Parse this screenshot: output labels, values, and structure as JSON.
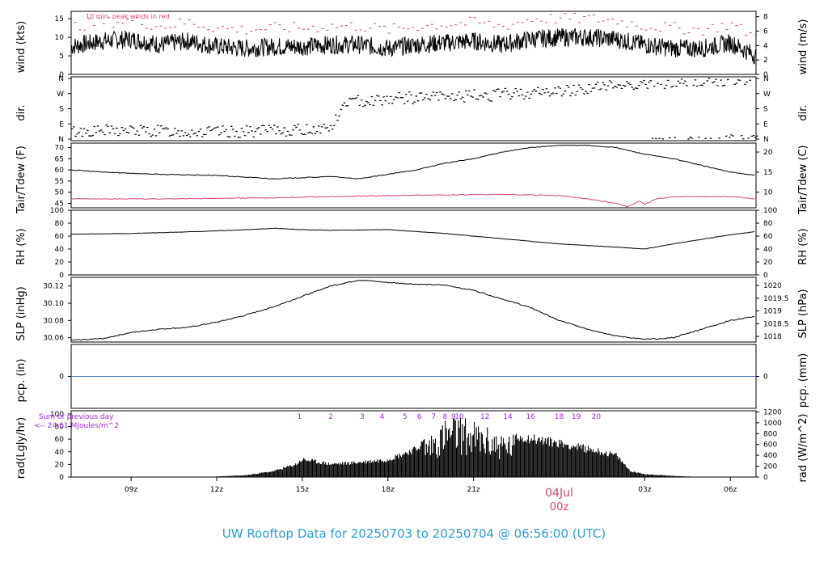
{
  "chart_data": {
    "type": "line",
    "title": "UW Rooftop Data for 20250703  to  20250704 @ 06:56:00  (UTC)",
    "x_axis": {
      "ticks": [
        "09z",
        "12z",
        "15z",
        "18z",
        "21z",
        "03z",
        "06z"
      ],
      "tick_hours": [
        9,
        12,
        15,
        18,
        21,
        27,
        30
      ],
      "range_hours": [
        6.9,
        30.9
      ],
      "date_marker": {
        "label": "04Jul",
        "sublabel": "00z",
        "hour": 24
      }
    },
    "panels": [
      {
        "id": "wind",
        "ylabel_left": "wind (kts)",
        "ylabel_right": "wind (m/s)",
        "ylim": [
          0,
          17
        ],
        "ticks_left": [
          0,
          5,
          10,
          15
        ],
        "ticks_right": [
          0,
          2,
          4,
          6,
          8
        ],
        "annotation": "10 min. peak winds in red",
        "series": [
          {
            "role": "mean",
            "color": "#000000",
            "x": [
              6.9,
              8,
              9,
              10,
              11,
              12,
              13,
              14,
              15,
              16,
              17,
              18,
              19,
              20,
              21,
              22,
              23,
              24,
              25,
              26,
              27,
              28,
              29,
              30,
              30.9
            ],
            "values": [
              7.5,
              9,
              9.5,
              8,
              9,
              7.5,
              7,
              7.5,
              7.5,
              8,
              8,
              7,
              8,
              8.5,
              9,
              8,
              9.5,
              10,
              10,
              9.5,
              8,
              7,
              7,
              8.5,
              5
            ]
          },
          {
            "role": "peak",
            "color": "#d9456a",
            "x": [
              6.9,
              8,
              9,
              10,
              11,
              12,
              13,
              14,
              15,
              16,
              17,
              18,
              19,
              20,
              21,
              22,
              23,
              24,
              25,
              26,
              27,
              28,
              29,
              30,
              30.9
            ],
            "values": [
              13,
              14,
              14.5,
              13,
              14,
              12.5,
              12,
              12.5,
              12.5,
              13,
              13,
              12,
              13,
              13.5,
              14,
              13,
              15,
              15,
              15,
              14.5,
              13,
              12.5,
              12,
              13.5,
              10
            ]
          }
        ]
      },
      {
        "id": "dir",
        "ylabel_left": "dir.",
        "ylabel_right": "dir.",
        "ticks_left": [
          "N",
          "E",
          "S",
          "W",
          "N"
        ],
        "direction_hint_deg": {
          "x": [
            6.9,
            9,
            12,
            15,
            16,
            16.5,
            18,
            20,
            22,
            24,
            26,
            28,
            30,
            30.9
          ],
          "values": [
            45,
            50,
            40,
            55,
            70,
            220,
            240,
            250,
            265,
            285,
            320,
            340,
            350,
            355
          ]
        }
      },
      {
        "id": "temp",
        "ylabel_left": "Tair/Tdew (F)",
        "ylabel_right": "Tair/Tdew (C)",
        "ylim": [
          43,
          72
        ],
        "ticks_left": [
          45,
          50,
          55,
          60,
          65,
          70
        ],
        "ticks_right": [
          10,
          15,
          20
        ],
        "series": [
          {
            "role": "tair",
            "color": "#000000",
            "x": [
              6.9,
              8,
              10,
              12,
              14,
              15,
              16,
              17,
              18,
              19,
              20,
              21,
              22,
              23,
              24,
              25,
              26,
              27,
              28,
              29,
              30,
              30.9
            ],
            "values": [
              60,
              59,
              58,
              57.5,
              56,
              56.5,
              57,
              56,
              58,
              60,
              63,
              65,
              68,
              70,
              71,
              71,
              70,
              67,
              65,
              62,
              59,
              57.5
            ]
          },
          {
            "role": "tdew",
            "color": "#d9456a",
            "x": [
              6.9,
              10,
              14,
              18,
              22,
              24,
              25,
              26,
              26.4,
              26.8,
              27,
              27.4,
              28,
              30,
              30.9
            ],
            "values": [
              47,
              47,
              47.5,
              48.5,
              49,
              48.5,
              47,
              45,
              43.5,
              46,
              44.5,
              47,
              48,
              48,
              47
            ]
          }
        ]
      },
      {
        "id": "rh",
        "ylabel_left": "RH (%)",
        "ylabel_right": "RH (%)",
        "ylim": [
          0,
          100
        ],
        "ticks_left": [
          0,
          20,
          40,
          60,
          80,
          100
        ],
        "ticks_right": [
          0,
          20,
          40,
          60,
          80,
          100
        ],
        "series": [
          {
            "role": "rh",
            "color": "#000000",
            "x": [
              6.9,
              9,
              12,
              14,
              15,
              16,
              18,
              20,
              22,
              24,
              26,
              27,
              28,
              30,
              30.9
            ],
            "values": [
              63,
              64,
              68,
              72,
              70,
              69,
              70,
              64,
              56,
              48,
              43,
              40,
              48,
              62,
              67
            ]
          }
        ]
      },
      {
        "id": "slp",
        "ylabel_left": "SLP (inHg)",
        "ylabel_right": "SLP (hPa)",
        "ylim": [
          30.055,
          30.13
        ],
        "ticks_left": [
          30.06,
          30.08,
          30.1,
          30.12
        ],
        "ticks_right": [
          1018,
          1018.5,
          1019,
          1019.5,
          1020
        ],
        "series": [
          {
            "role": "slp",
            "color": "#000000",
            "x": [
              6.9,
              8,
              9,
              10,
              11,
              12,
              13,
              14,
              15,
              16,
              17,
              18,
              19,
              20,
              21,
              22,
              23,
              24,
              25,
              26,
              27,
              28,
              29,
              30,
              30.9
            ],
            "values": [
              30.057,
              30.059,
              30.066,
              30.07,
              30.072,
              30.078,
              30.086,
              30.096,
              30.108,
              30.12,
              30.127,
              30.124,
              30.122,
              30.121,
              30.115,
              30.105,
              30.095,
              30.08,
              30.07,
              30.062,
              30.058,
              30.06,
              30.07,
              30.08,
              30.085
            ]
          }
        ]
      },
      {
        "id": "pcp",
        "ylabel_left": "pcp. (in)",
        "ylabel_right": "pcp. (mm)",
        "ticks_left": [
          0
        ],
        "ticks_right": [
          0
        ],
        "series": [
          {
            "role": "pcp",
            "color": "#4a6fbf",
            "x": [
              6.9,
              30.9
            ],
            "values": [
              0,
              0
            ]
          }
        ]
      },
      {
        "id": "rad",
        "ylabel_left": "rad(Lgly/hr)",
        "ylabel_right": "rad (W/m^2)",
        "ylim": [
          0,
          105
        ],
        "ticks_left": [
          0,
          20,
          40,
          60,
          80,
          100
        ],
        "ticks_right": [
          0,
          200,
          400,
          600,
          800,
          1000,
          1200
        ],
        "sum_label": "Sum of previous day",
        "sum_value": "<-- 24.61 MJoules/m^2",
        "hour_markers": [
          "1",
          "2",
          "3",
          "4",
          "5",
          "6",
          "7",
          "8",
          "9",
          "10",
          "12",
          "14",
          "16",
          "18",
          "19",
          "20"
        ],
        "hour_marker_hours": [
          14.9,
          16.0,
          17.1,
          17.8,
          18.6,
          19.1,
          19.6,
          20.0,
          20.3,
          20.5,
          21.4,
          22.2,
          23.0,
          24.0,
          24.6,
          25.3
        ],
        "envelope": {
          "x": [
            12,
            13,
            14,
            14.8,
            15,
            16,
            17,
            18,
            19,
            19.5,
            20,
            20.5,
            21,
            21.5,
            22,
            23,
            24,
            25,
            26,
            26.5,
            27,
            28,
            28.5
          ],
          "values": [
            1,
            3,
            10,
            22,
            30,
            22,
            25,
            30,
            48,
            72,
            95,
            100,
            90,
            80,
            72,
            66,
            58,
            48,
            37,
            10,
            5,
            2,
            1
          ]
        }
      }
    ]
  }
}
